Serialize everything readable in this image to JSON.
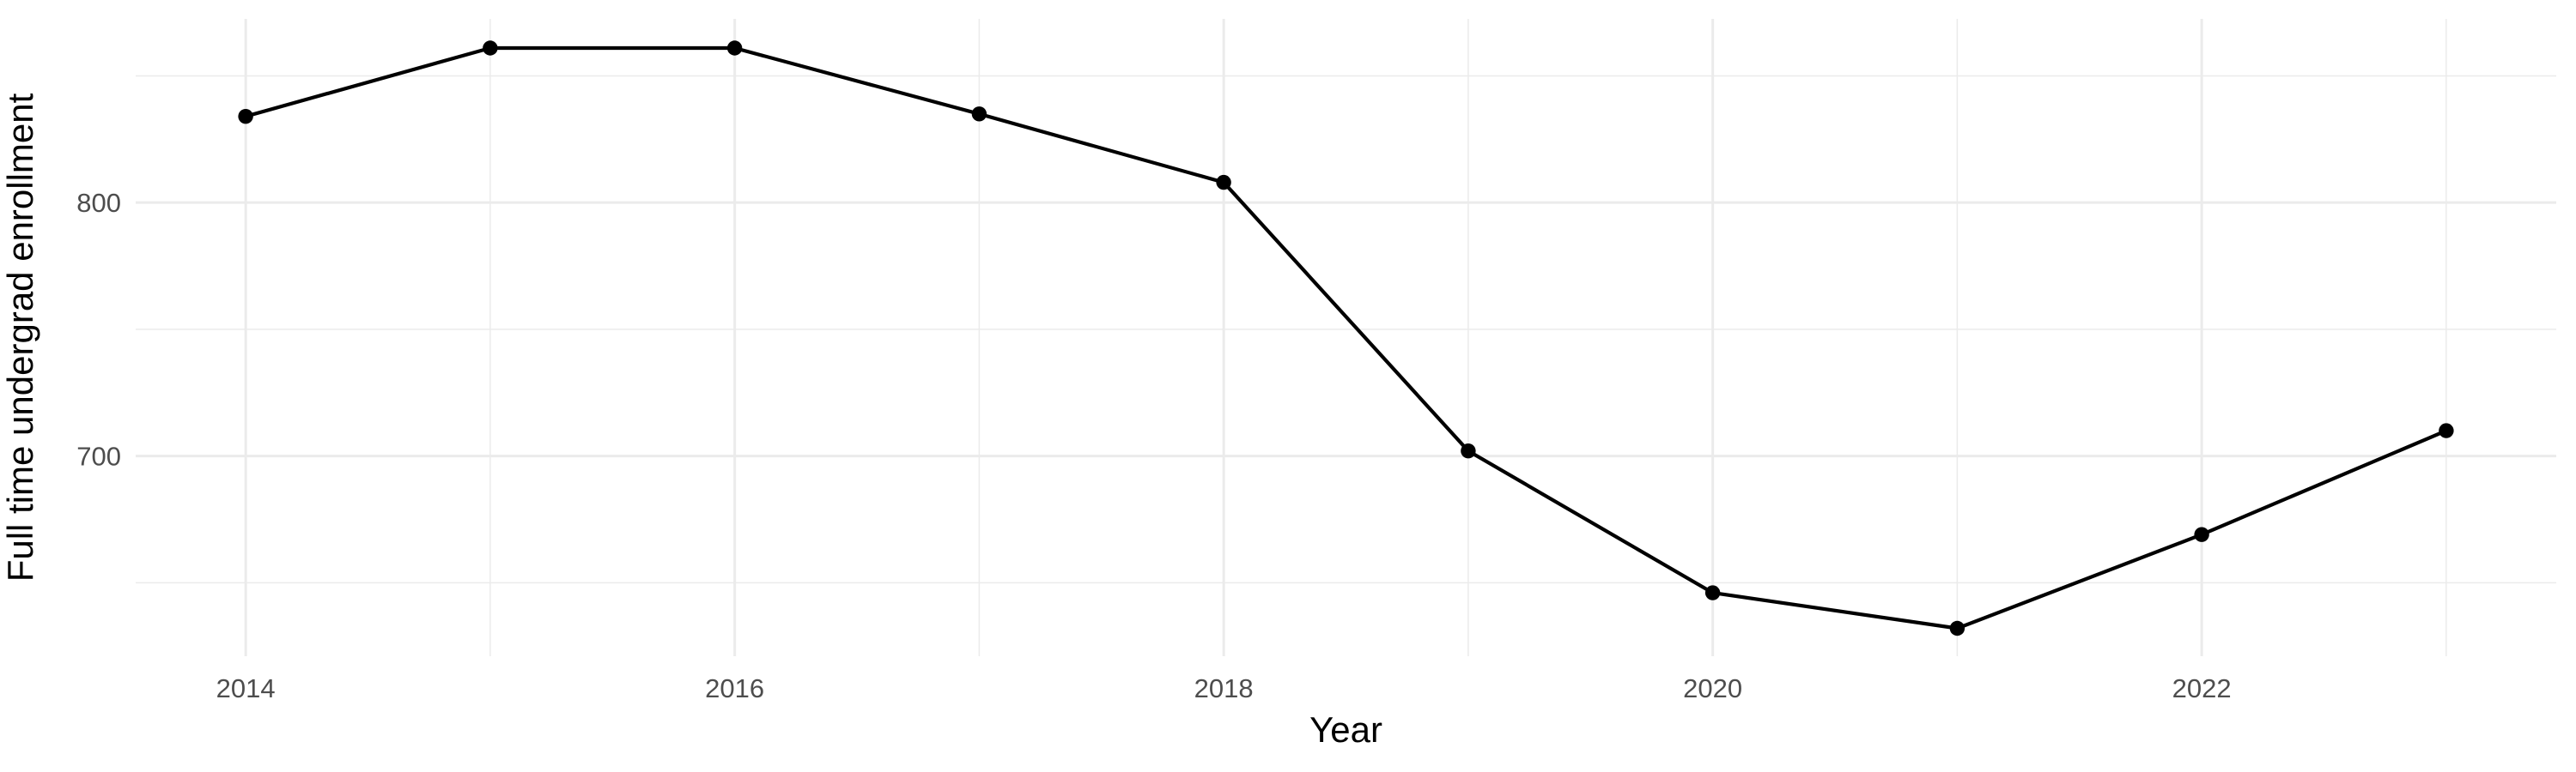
{
  "figure": {
    "background_color": "#FFFFFF",
    "grid_color": "#EBEBEB",
    "tick_label_color": "#4D4D4D",
    "axis_title_color": "#000000",
    "line_color": "#000000",
    "point_color": "#000000"
  },
  "chart_data": {
    "type": "line",
    "title": "",
    "xlabel": "Year",
    "ylabel": "Full time undergrad enrollment",
    "x": [
      2014,
      2015,
      2016,
      2017,
      2018,
      2019,
      2020,
      2021,
      2022,
      2023
    ],
    "values": [
      834,
      861,
      861,
      835,
      808,
      702,
      646,
      632,
      669,
      710
    ],
    "series": [
      {
        "name": "Full time undergrad enrollment",
        "values": [
          834,
          861,
          861,
          835,
          808,
          702,
          646,
          632,
          669,
          710
        ]
      }
    ],
    "xlim": [
      2013.55,
      2023.45
    ],
    "ylim": [
      621,
      872.5
    ],
    "x_major_ticks": [
      2014,
      2016,
      2018,
      2020,
      2022
    ],
    "x_tick_labels": [
      "2014",
      "2016",
      "2018",
      "2020",
      "2022"
    ],
    "x_minor_gridlines": [
      2015,
      2017,
      2019,
      2021,
      2023
    ],
    "y_major_ticks": [
      700,
      800
    ],
    "y_tick_labels": [
      "700",
      "800"
    ],
    "y_minor_gridlines": [
      650,
      750,
      850
    ],
    "grid": true,
    "legend_position": "none",
    "marker": "point",
    "style": "ggplot-minimal"
  }
}
